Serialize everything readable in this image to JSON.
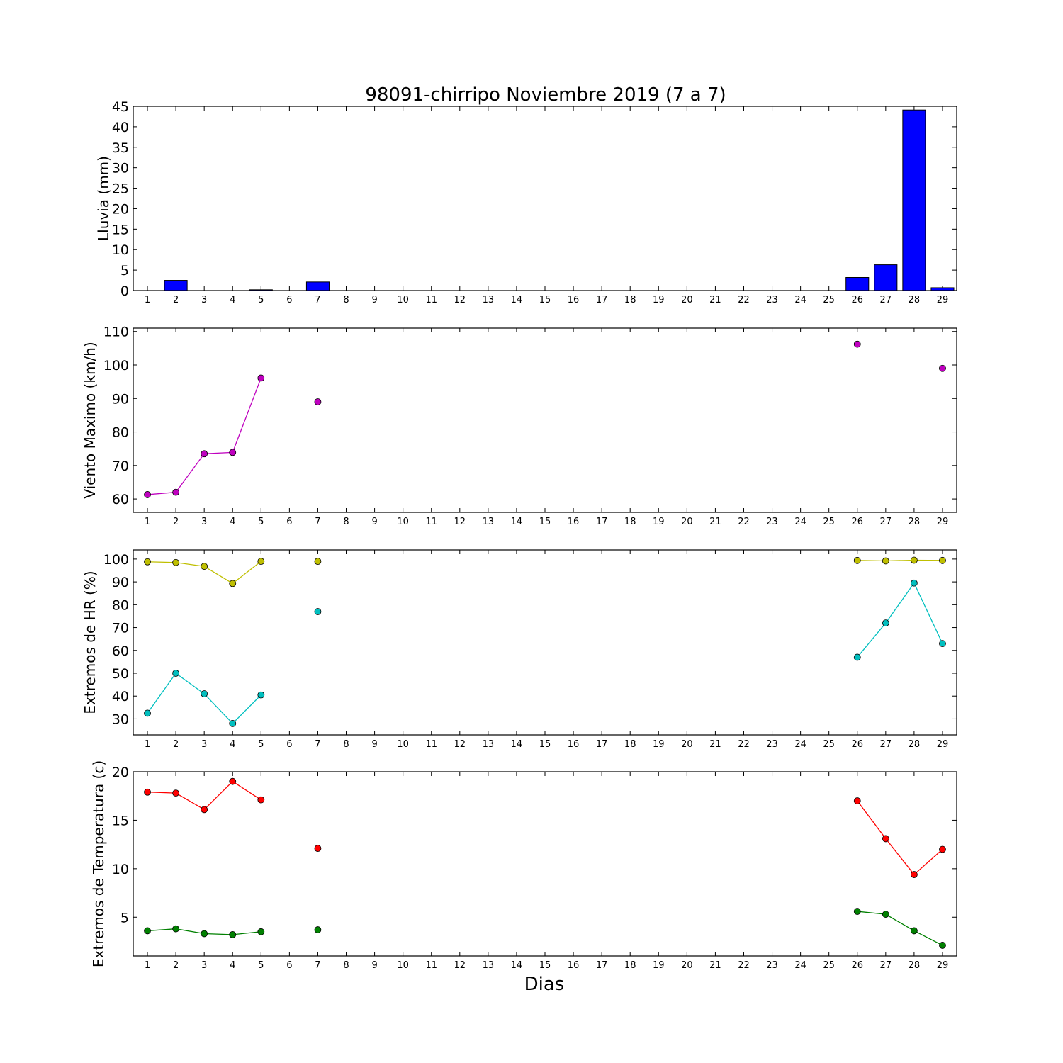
{
  "title": "98091-chirripo Noviembre 2019  (7 a 7)",
  "xlabel": "Dias",
  "chart_data": [
    {
      "type": "bar",
      "ylabel": "Lluvia (mm)",
      "x_categories": [
        "1",
        "2",
        "3",
        "4",
        "5",
        "6",
        "7",
        "8",
        "9",
        "10",
        "11",
        "12",
        "13",
        "14",
        "15",
        "16",
        "17",
        "18",
        "19",
        "20",
        "21",
        "22",
        "23",
        "24",
        "25",
        "26",
        "27",
        "28",
        "29"
      ],
      "ylim": [
        0,
        45
      ],
      "yticks": [
        0,
        5,
        10,
        15,
        20,
        25,
        30,
        35,
        40,
        45
      ],
      "color": "#0000ff",
      "values": [
        0.0,
        2.5,
        0.0,
        0.0,
        0.2,
        null,
        2.1,
        null,
        null,
        null,
        null,
        null,
        null,
        null,
        null,
        null,
        null,
        null,
        null,
        null,
        null,
        null,
        null,
        null,
        null,
        3.2,
        6.3,
        44.1,
        0.7
      ]
    },
    {
      "type": "line",
      "ylabel": "Viento Maximo (km/h)",
      "x_categories": [
        "1",
        "2",
        "3",
        "4",
        "5",
        "6",
        "7",
        "8",
        "9",
        "10",
        "11",
        "12",
        "13",
        "14",
        "15",
        "16",
        "17",
        "18",
        "19",
        "20",
        "21",
        "22",
        "23",
        "24",
        "25",
        "26",
        "27",
        "28",
        "29"
      ],
      "ylim": [
        56,
        111
      ],
      "yticks": [
        60,
        70,
        80,
        90,
        100,
        110
      ],
      "series": [
        {
          "color": "#bf00bf",
          "values": [
            61.3,
            62.0,
            73.5,
            73.9,
            96.1,
            null,
            89.0,
            null,
            null,
            null,
            null,
            null,
            null,
            null,
            null,
            null,
            null,
            null,
            null,
            null,
            null,
            null,
            null,
            null,
            null,
            106.2,
            null,
            null,
            99.0
          ]
        }
      ]
    },
    {
      "type": "line",
      "ylabel": "Extremos de HR (%)",
      "x_categories": [
        "1",
        "2",
        "3",
        "4",
        "5",
        "6",
        "7",
        "8",
        "9",
        "10",
        "11",
        "12",
        "13",
        "14",
        "15",
        "16",
        "17",
        "18",
        "19",
        "20",
        "21",
        "22",
        "23",
        "24",
        "25",
        "26",
        "27",
        "28",
        "29"
      ],
      "ylim": [
        23,
        104
      ],
      "yticks": [
        30,
        40,
        50,
        60,
        70,
        80,
        90,
        100
      ],
      "series": [
        {
          "color": "#bfbf00",
          "values": [
            98.8,
            98.5,
            96.8,
            89.3,
            99.0,
            null,
            99.0,
            null,
            null,
            null,
            null,
            null,
            null,
            null,
            null,
            null,
            null,
            null,
            null,
            null,
            null,
            null,
            null,
            null,
            null,
            99.4,
            99.2,
            99.5,
            99.4
          ]
        },
        {
          "color": "#00bfbf",
          "values": [
            32.5,
            50.0,
            41.0,
            28.0,
            40.5,
            null,
            77.0,
            null,
            null,
            null,
            null,
            null,
            null,
            null,
            null,
            null,
            null,
            null,
            null,
            null,
            null,
            null,
            null,
            null,
            null,
            57.0,
            72.0,
            89.5,
            63.0
          ]
        }
      ]
    },
    {
      "type": "line",
      "ylabel": "Extremos de Temperatura (c)",
      "x_categories": [
        "1",
        "2",
        "3",
        "4",
        "5",
        "6",
        "7",
        "8",
        "9",
        "10",
        "11",
        "12",
        "13",
        "14",
        "15",
        "16",
        "17",
        "18",
        "19",
        "20",
        "21",
        "22",
        "23",
        "24",
        "25",
        "26",
        "27",
        "28",
        "29"
      ],
      "ylim": [
        1,
        20
      ],
      "yticks": [
        5,
        10,
        15,
        20
      ],
      "series": [
        {
          "color": "#ff0000",
          "values": [
            17.9,
            17.8,
            16.1,
            19.0,
            17.1,
            null,
            12.1,
            null,
            null,
            null,
            null,
            null,
            null,
            null,
            null,
            null,
            null,
            null,
            null,
            null,
            null,
            null,
            null,
            null,
            null,
            17.0,
            13.1,
            9.4,
            12.0
          ]
        },
        {
          "color": "#008000",
          "values": [
            3.6,
            3.8,
            3.3,
            3.2,
            3.5,
            null,
            3.7,
            null,
            null,
            null,
            null,
            null,
            null,
            null,
            null,
            null,
            null,
            null,
            null,
            null,
            null,
            null,
            null,
            null,
            null,
            5.6,
            5.3,
            3.6,
            2.1
          ]
        }
      ]
    }
  ]
}
